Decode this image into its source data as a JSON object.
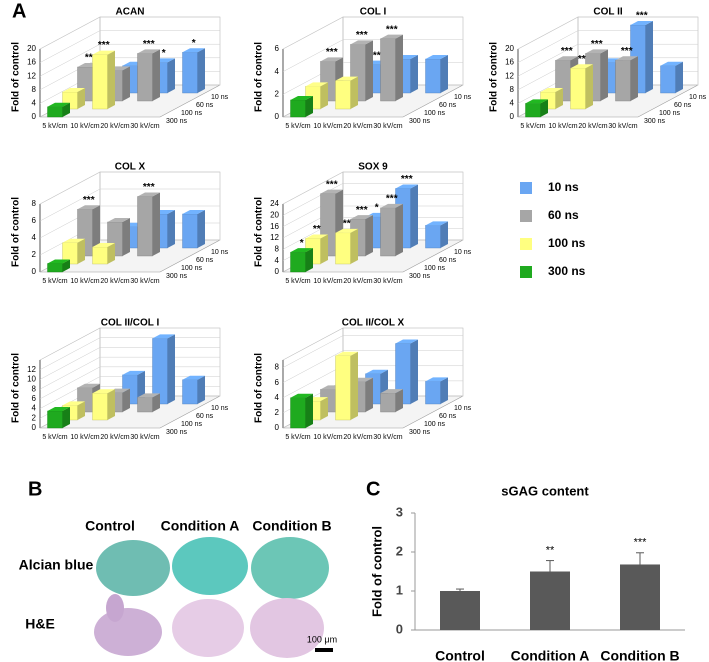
{
  "panel_labels": [
    "A",
    "B",
    "C"
  ],
  "panel_b": {
    "columns": [
      "Control",
      "Condition A",
      "Condition B"
    ],
    "rows": [
      "Alcian blue",
      "H&E"
    ],
    "scale_bar": "100 μm"
  },
  "chart_data": [
    {
      "type": "bar3d",
      "title": "ACAN",
      "y_label": "Fold of control",
      "categories": [
        "5 kV/cm",
        "10 kV/cm",
        "20 kV/cm",
        "30 kV/cm"
      ],
      "ylim": [
        0,
        20
      ],
      "yticks": [
        0,
        4,
        8,
        12,
        16,
        20
      ],
      "series": [
        {
          "name": "10 ns",
          "color": "#6aa6f2",
          "values": [
            null,
            8,
            9,
            12
          ],
          "annotations": [
            null,
            null,
            "*",
            "*"
          ]
        },
        {
          "name": "60 ns",
          "color": "#a6a6a6",
          "values": [
            10,
            9,
            14,
            null
          ],
          "annotations": [
            "**",
            null,
            "***",
            null
          ]
        },
        {
          "name": "100 ns",
          "color": "#ffff80",
          "values": [
            5,
            16,
            null,
            null
          ],
          "annotations": [
            null,
            "***",
            null,
            null
          ]
        },
        {
          "name": "300 ns",
          "color": "#1faa1f",
          "values": [
            3,
            null,
            null,
            null
          ],
          "annotations": [
            null,
            null,
            null,
            null
          ]
        }
      ]
    },
    {
      "type": "bar3d",
      "title": "COL I",
      "y_label": "Fold of control",
      "categories": [
        "5 kV/cm",
        "10 kV/cm",
        "20 kV/cm",
        "30 kV/cm"
      ],
      "ylim": [
        0,
        6
      ],
      "yticks": [
        0,
        2,
        4,
        6
      ],
      "series": [
        {
          "name": "10 ns",
          "color": "#6aa6f2",
          "values": [
            null,
            2.5,
            3,
            3
          ],
          "annotations": [
            null,
            "**",
            null,
            null
          ]
        },
        {
          "name": "60 ns",
          "color": "#a6a6a6",
          "values": [
            3.5,
            5,
            5.5,
            null
          ],
          "annotations": [
            "***",
            "***",
            "***",
            null
          ]
        },
        {
          "name": "100 ns",
          "color": "#ffff80",
          "values": [
            2,
            2.5,
            null,
            null
          ],
          "annotations": [
            null,
            null,
            null,
            null
          ]
        },
        {
          "name": "300 ns",
          "color": "#1faa1f",
          "values": [
            1.5,
            null,
            null,
            null
          ],
          "annotations": [
            null,
            null,
            null,
            null
          ]
        }
      ]
    },
    {
      "type": "bar3d",
      "title": "COL II",
      "y_label": "Fold of control",
      "categories": [
        "5 kV/cm",
        "10 kV/cm",
        "20 kV/cm",
        "30 kV/cm"
      ],
      "ylim": [
        0,
        20
      ],
      "yticks": [
        0,
        4,
        8,
        12,
        16,
        20
      ],
      "series": [
        {
          "name": "10 ns",
          "color": "#6aa6f2",
          "values": [
            null,
            9,
            20,
            8
          ],
          "annotations": [
            null,
            null,
            "***",
            null
          ]
        },
        {
          "name": "60 ns",
          "color": "#a6a6a6",
          "values": [
            12,
            14,
            12,
            null
          ],
          "annotations": [
            "***",
            "***",
            "***",
            null
          ]
        },
        {
          "name": "100 ns",
          "color": "#ffff80",
          "values": [
            5,
            12,
            null,
            null
          ],
          "annotations": [
            null,
            "**",
            null,
            null
          ]
        },
        {
          "name": "300 ns",
          "color": "#1faa1f",
          "values": [
            4,
            null,
            null,
            null
          ],
          "annotations": [
            null,
            null,
            null,
            null
          ]
        }
      ]
    },
    {
      "type": "bar3d",
      "title": "COL X",
      "y_label": "Fold of control",
      "categories": [
        "5 kV/cm",
        "10 kV/cm",
        "20 kV/cm",
        "30 kV/cm"
      ],
      "ylim": [
        0,
        8
      ],
      "yticks": [
        0,
        2,
        4,
        6,
        8
      ],
      "series": [
        {
          "name": "10 ns",
          "color": "#6aa6f2",
          "values": [
            null,
            2.5,
            4,
            4
          ],
          "annotations": [
            null,
            null,
            null,
            null
          ]
        },
        {
          "name": "60 ns",
          "color": "#a6a6a6",
          "values": [
            5.5,
            4,
            7,
            null
          ],
          "annotations": [
            "***",
            null,
            "***",
            null
          ]
        },
        {
          "name": "100 ns",
          "color": "#ffff80",
          "values": [
            2.5,
            2,
            null,
            null
          ],
          "annotations": [
            null,
            null,
            null,
            null
          ]
        },
        {
          "name": "300 ns",
          "color": "#1faa1f",
          "values": [
            1,
            null,
            null,
            null
          ],
          "annotations": [
            null,
            null,
            null,
            null
          ]
        }
      ]
    },
    {
      "type": "bar3d",
      "title": "SOX 9",
      "y_label": "Fold of control",
      "categories": [
        "5 kV/cm",
        "10 kV/cm",
        "20 kV/cm",
        "30 kV/cm"
      ],
      "ylim": [
        0,
        24
      ],
      "yticks": [
        0,
        4,
        8,
        12,
        16,
        20,
        24
      ],
      "series": [
        {
          "name": "10 ns",
          "color": "#6aa6f2",
          "values": [
            null,
            11,
            21,
            8
          ],
          "annotations": [
            null,
            "*",
            "***",
            null
          ]
        },
        {
          "name": "60 ns",
          "color": "#a6a6a6",
          "values": [
            22,
            13,
            17,
            null
          ],
          "annotations": [
            "***",
            "***",
            "***",
            null
          ]
        },
        {
          "name": "100 ns",
          "color": "#ffff80",
          "values": [
            9,
            11,
            null,
            null
          ],
          "annotations": [
            "**",
            "**",
            null,
            null
          ]
        },
        {
          "name": "300 ns",
          "color": "#1faa1f",
          "values": [
            7,
            null,
            null,
            null
          ],
          "annotations": [
            "*",
            null,
            null,
            null
          ]
        }
      ]
    },
    {
      "type": "bar3d",
      "title": "COL II/COL I",
      "y_label": "Fold of control",
      "categories": [
        "5 kV/cm",
        "10 kV/cm",
        "20 kV/cm",
        "30 kV/cm"
      ],
      "ylim": [
        0,
        14
      ],
      "yticks": [
        0,
        2,
        4,
        6,
        8,
        10,
        12
      ],
      "series": [
        {
          "name": "10 ns",
          "color": "#6aa6f2",
          "values": [
            null,
            6,
            13.5,
            5
          ],
          "annotations": [
            null,
            null,
            null,
            null
          ]
        },
        {
          "name": "60 ns",
          "color": "#a6a6a6",
          "values": [
            5,
            4,
            3,
            null
          ],
          "annotations": [
            null,
            null,
            null,
            null
          ]
        },
        {
          "name": "100 ns",
          "color": "#ffff80",
          "values": [
            3,
            5.5,
            null,
            null
          ],
          "annotations": [
            null,
            null,
            null,
            null
          ]
        },
        {
          "name": "300 ns",
          "color": "#1faa1f",
          "values": [
            3.5,
            null,
            null,
            null
          ],
          "annotations": [
            null,
            null,
            null,
            null
          ]
        }
      ]
    },
    {
      "type": "bar3d",
      "title": "COL II/COL X",
      "y_label": "Fold of control",
      "categories": [
        "5 kV/cm",
        "10 kV/cm",
        "20 kV/cm",
        "30 kV/cm"
      ],
      "ylim": [
        0,
        9
      ],
      "yticks": [
        0,
        2,
        4,
        6,
        8
      ],
      "series": [
        {
          "name": "10 ns",
          "color": "#6aa6f2",
          "values": [
            null,
            4,
            8,
            3
          ],
          "annotations": [
            null,
            null,
            null,
            null
          ]
        },
        {
          "name": "60 ns",
          "color": "#a6a6a6",
          "values": [
            3,
            4,
            2.5,
            null
          ],
          "annotations": [
            null,
            null,
            null,
            null
          ]
        },
        {
          "name": "100 ns",
          "color": "#ffff80",
          "values": [
            2.5,
            8.5,
            null,
            null
          ],
          "annotations": [
            null,
            null,
            null,
            null
          ]
        },
        {
          "name": "300 ns",
          "color": "#1faa1f",
          "values": [
            4,
            null,
            null,
            null
          ],
          "annotations": [
            null,
            null,
            null,
            null
          ]
        }
      ]
    },
    {
      "type": "bar",
      "title": "sGAG content",
      "y_label": "Fold of control",
      "categories": [
        "Control",
        "Condition A",
        "Condition B"
      ],
      "values": [
        1.0,
        1.5,
        1.68
      ],
      "errors": [
        0.05,
        0.28,
        0.3
      ],
      "annotations": [
        null,
        "**",
        "***"
      ],
      "color": "#595959",
      "ylim": [
        0,
        3
      ],
      "yticks": [
        0,
        1,
        2,
        3
      ]
    }
  ]
}
